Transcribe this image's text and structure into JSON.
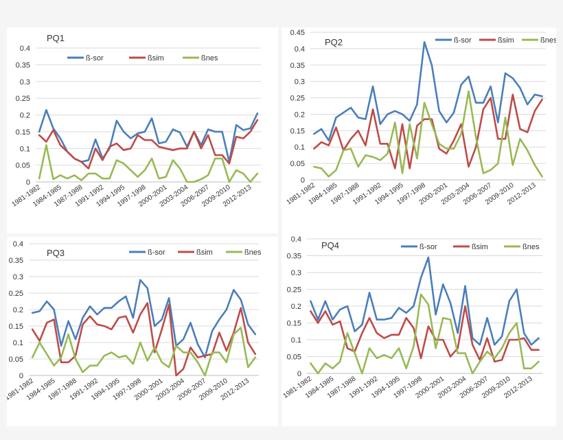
{
  "chart_data": [
    {
      "type": "line",
      "title": "PQ1",
      "ylim": [
        0,
        0.4
      ],
      "yticks": [
        "0",
        "0.05",
        "0.1",
        "0.15",
        "0.2",
        "0.25",
        "0.3",
        "0.35",
        "0.4"
      ],
      "x_labels": [
        "1981-1982",
        "1984-1985",
        "1987-1988",
        "1991-1992",
        "1994-1995",
        "1997-1998",
        "2000-2001",
        "2003-2004",
        "2006-2007",
        "2009-2010",
        "2012-2013"
      ],
      "series": [
        {
          "name": "ß-sor",
          "color": "#4a7ebb",
          "values": [
            0.15,
            0.215,
            0.16,
            0.13,
            0.09,
            0.07,
            0.06,
            0.065,
            0.127,
            0.07,
            0.1,
            0.183,
            0.15,
            0.13,
            0.145,
            0.15,
            0.19,
            0.115,
            0.12,
            0.157,
            0.148,
            0.105,
            0.15,
            0.11,
            0.157,
            0.15,
            0.15,
            0.06,
            0.17,
            0.155,
            0.16,
            0.205
          ]
        },
        {
          "name": "ßsim",
          "color": "#be4b48",
          "values": [
            0.14,
            0.12,
            0.155,
            0.11,
            0.09,
            0.07,
            0.06,
            0.04,
            0.1,
            0.065,
            0.105,
            0.115,
            0.095,
            0.1,
            0.14,
            0.125,
            0.125,
            0.105,
            0.1,
            0.095,
            0.1,
            0.1,
            0.15,
            0.1,
            0.14,
            0.08,
            0.08,
            0.055,
            0.135,
            0.13,
            0.15,
            0.185
          ]
        },
        {
          "name": "ßnes",
          "color": "#98b954",
          "values": [
            0.01,
            0.11,
            0.008,
            0.02,
            0.01,
            0.02,
            0.005,
            0.025,
            0.025,
            0.01,
            0.01,
            0.065,
            0.055,
            0.035,
            0.015,
            0.035,
            0.07,
            0.01,
            0.015,
            0.065,
            0.04,
            0.0,
            0.0,
            0.008,
            0.02,
            0.07,
            0.07,
            0.0,
            0.035,
            0.025,
            0.0,
            0.025
          ]
        }
      ]
    },
    {
      "type": "line",
      "title": "PQ2",
      "ylim": [
        0,
        0.45
      ],
      "yticks": [
        "0",
        "0.05",
        "0.1",
        "0.15",
        "0.2",
        "0.25",
        "0.3",
        "0.35",
        "0.4",
        "0.45"
      ],
      "x_labels": [
        "1981-1982",
        "1984-1985",
        "1987-1988",
        "1991-1992",
        "1994-1995",
        "1997-1998",
        "2000-2001",
        "2003-2004",
        "2006-2007",
        "2009-2010",
        "2012-2013"
      ],
      "series": [
        {
          "name": "ß-sor",
          "color": "#4a7ebb",
          "values": [
            0.14,
            0.155,
            0.12,
            0.19,
            0.205,
            0.22,
            0.19,
            0.185,
            0.285,
            0.17,
            0.2,
            0.21,
            0.2,
            0.18,
            0.23,
            0.42,
            0.35,
            0.21,
            0.175,
            0.205,
            0.29,
            0.315,
            0.235,
            0.235,
            0.285,
            0.175,
            0.325,
            0.31,
            0.28,
            0.23,
            0.26,
            0.255
          ]
        },
        {
          "name": "ßsim",
          "color": "#be4b48",
          "values": [
            0.095,
            0.115,
            0.105,
            0.16,
            0.09,
            0.125,
            0.15,
            0.105,
            0.215,
            0.11,
            0.11,
            0.035,
            0.17,
            0.035,
            0.165,
            0.185,
            0.185,
            0.095,
            0.08,
            0.12,
            0.17,
            0.04,
            0.1,
            0.215,
            0.25,
            0.125,
            0.125,
            0.26,
            0.155,
            0.145,
            0.21,
            0.245
          ]
        },
        {
          "name": "ßnes",
          "color": "#98b954",
          "values": [
            0.04,
            0.035,
            0.01,
            0.03,
            0.09,
            0.095,
            0.04,
            0.075,
            0.07,
            0.06,
            0.08,
            0.175,
            0.02,
            0.17,
            0.065,
            0.235,
            0.17,
            0.11,
            0.095,
            0.095,
            0.14,
            0.27,
            0.13,
            0.02,
            0.03,
            0.05,
            0.19,
            0.045,
            0.125,
            0.09,
            0.045,
            0.01
          ]
        }
      ]
    },
    {
      "type": "line",
      "title": "PQ3",
      "ylim": [
        0,
        0.4
      ],
      "yticks": [
        "0",
        "0.05",
        "0.1",
        "0.15",
        "0.2",
        "0.25",
        "0.3",
        "0.35",
        "0.4"
      ],
      "x_labels": [
        "1981-1982",
        "1984-1985",
        "1987-1988",
        "1991-1992",
        "1994-1995",
        "1997-1998",
        "2000-2001",
        "2003-2004",
        "2006-2007",
        "2009-2010",
        "2012-2013"
      ],
      "series": [
        {
          "name": "ß-sor",
          "color": "#4a7ebb",
          "values": [
            0.19,
            0.195,
            0.225,
            0.2,
            0.09,
            0.165,
            0.11,
            0.175,
            0.21,
            0.185,
            0.205,
            0.205,
            0.225,
            0.24,
            0.175,
            0.29,
            0.265,
            0.15,
            0.17,
            0.235,
            0.09,
            0.11,
            0.16,
            0.095,
            0.055,
            0.135,
            0.17,
            0.2,
            0.26,
            0.23,
            0.155,
            0.125
          ]
        },
        {
          "name": "ßsim",
          "color": "#be4b48",
          "values": [
            0.14,
            0.105,
            0.16,
            0.17,
            0.04,
            0.04,
            0.06,
            0.155,
            0.18,
            0.155,
            0.15,
            0.14,
            0.175,
            0.18,
            0.13,
            0.185,
            0.22,
            0.07,
            0.14,
            0.215,
            0.0,
            0.02,
            0.085,
            0.055,
            0.06,
            0.065,
            0.13,
            0.075,
            0.13,
            0.205,
            0.1,
            0.065
          ]
        },
        {
          "name": "ßnes",
          "color": "#98b954",
          "values": [
            0.055,
            0.1,
            0.065,
            0.03,
            0.055,
            0.125,
            0.05,
            0.01,
            0.03,
            0.03,
            0.06,
            0.07,
            0.055,
            0.06,
            0.035,
            0.1,
            0.045,
            0.085,
            0.04,
            0.025,
            0.09,
            0.07,
            0.07,
            0.04,
            0.0,
            0.07,
            0.07,
            0.04,
            0.125,
            0.145,
            0.025,
            0.055
          ]
        }
      ]
    },
    {
      "type": "line",
      "title": "PQ4",
      "ylim": [
        0,
        0.4
      ],
      "yticks": [
        "0",
        "0.05",
        "0.1",
        "0.15",
        "0.2",
        "0.25",
        "0.3",
        "0.35",
        "0.4"
      ],
      "x_labels": [
        "1981-1982",
        "1984-1985",
        "1987-1988",
        "1991-1992",
        "1994-1995",
        "1997-1998",
        "2000-2001",
        "2003-2004",
        "2006-2007",
        "2009-2010",
        "2012-2013"
      ],
      "series": [
        {
          "name": "ß-sor",
          "color": "#4a7ebb",
          "values": [
            0.215,
            0.16,
            0.215,
            0.16,
            0.19,
            0.2,
            0.125,
            0.145,
            0.24,
            0.16,
            0.16,
            0.165,
            0.195,
            0.18,
            0.2,
            0.285,
            0.345,
            0.175,
            0.265,
            0.21,
            0.12,
            0.26,
            0.105,
            0.085,
            0.165,
            0.085,
            0.11,
            0.215,
            0.25,
            0.12,
            0.085,
            0.105
          ]
        },
        {
          "name": "ßsim",
          "color": "#be4b48",
          "values": [
            0.185,
            0.15,
            0.185,
            0.145,
            0.155,
            0.075,
            0.065,
            0.12,
            0.165,
            0.12,
            0.105,
            0.115,
            0.115,
            0.165,
            0.135,
            0.045,
            0.14,
            0.1,
            0.1,
            0.05,
            0.075,
            0.2,
            0.085,
            0.04,
            0.105,
            0.035,
            0.04,
            0.1,
            0.1,
            0.105,
            0.07,
            0.07
          ]
        },
        {
          "name": "ßnes",
          "color": "#98b954",
          "values": [
            0.03,
            0.0,
            0.03,
            0.015,
            0.035,
            0.12,
            0.06,
            0.0,
            0.075,
            0.045,
            0.055,
            0.045,
            0.075,
            0.015,
            0.08,
            0.235,
            0.205,
            0.075,
            0.165,
            0.16,
            0.06,
            0.06,
            0.0,
            0.035,
            0.065,
            0.045,
            0.075,
            0.12,
            0.15,
            0.015,
            0.015,
            0.035
          ]
        }
      ]
    }
  ]
}
